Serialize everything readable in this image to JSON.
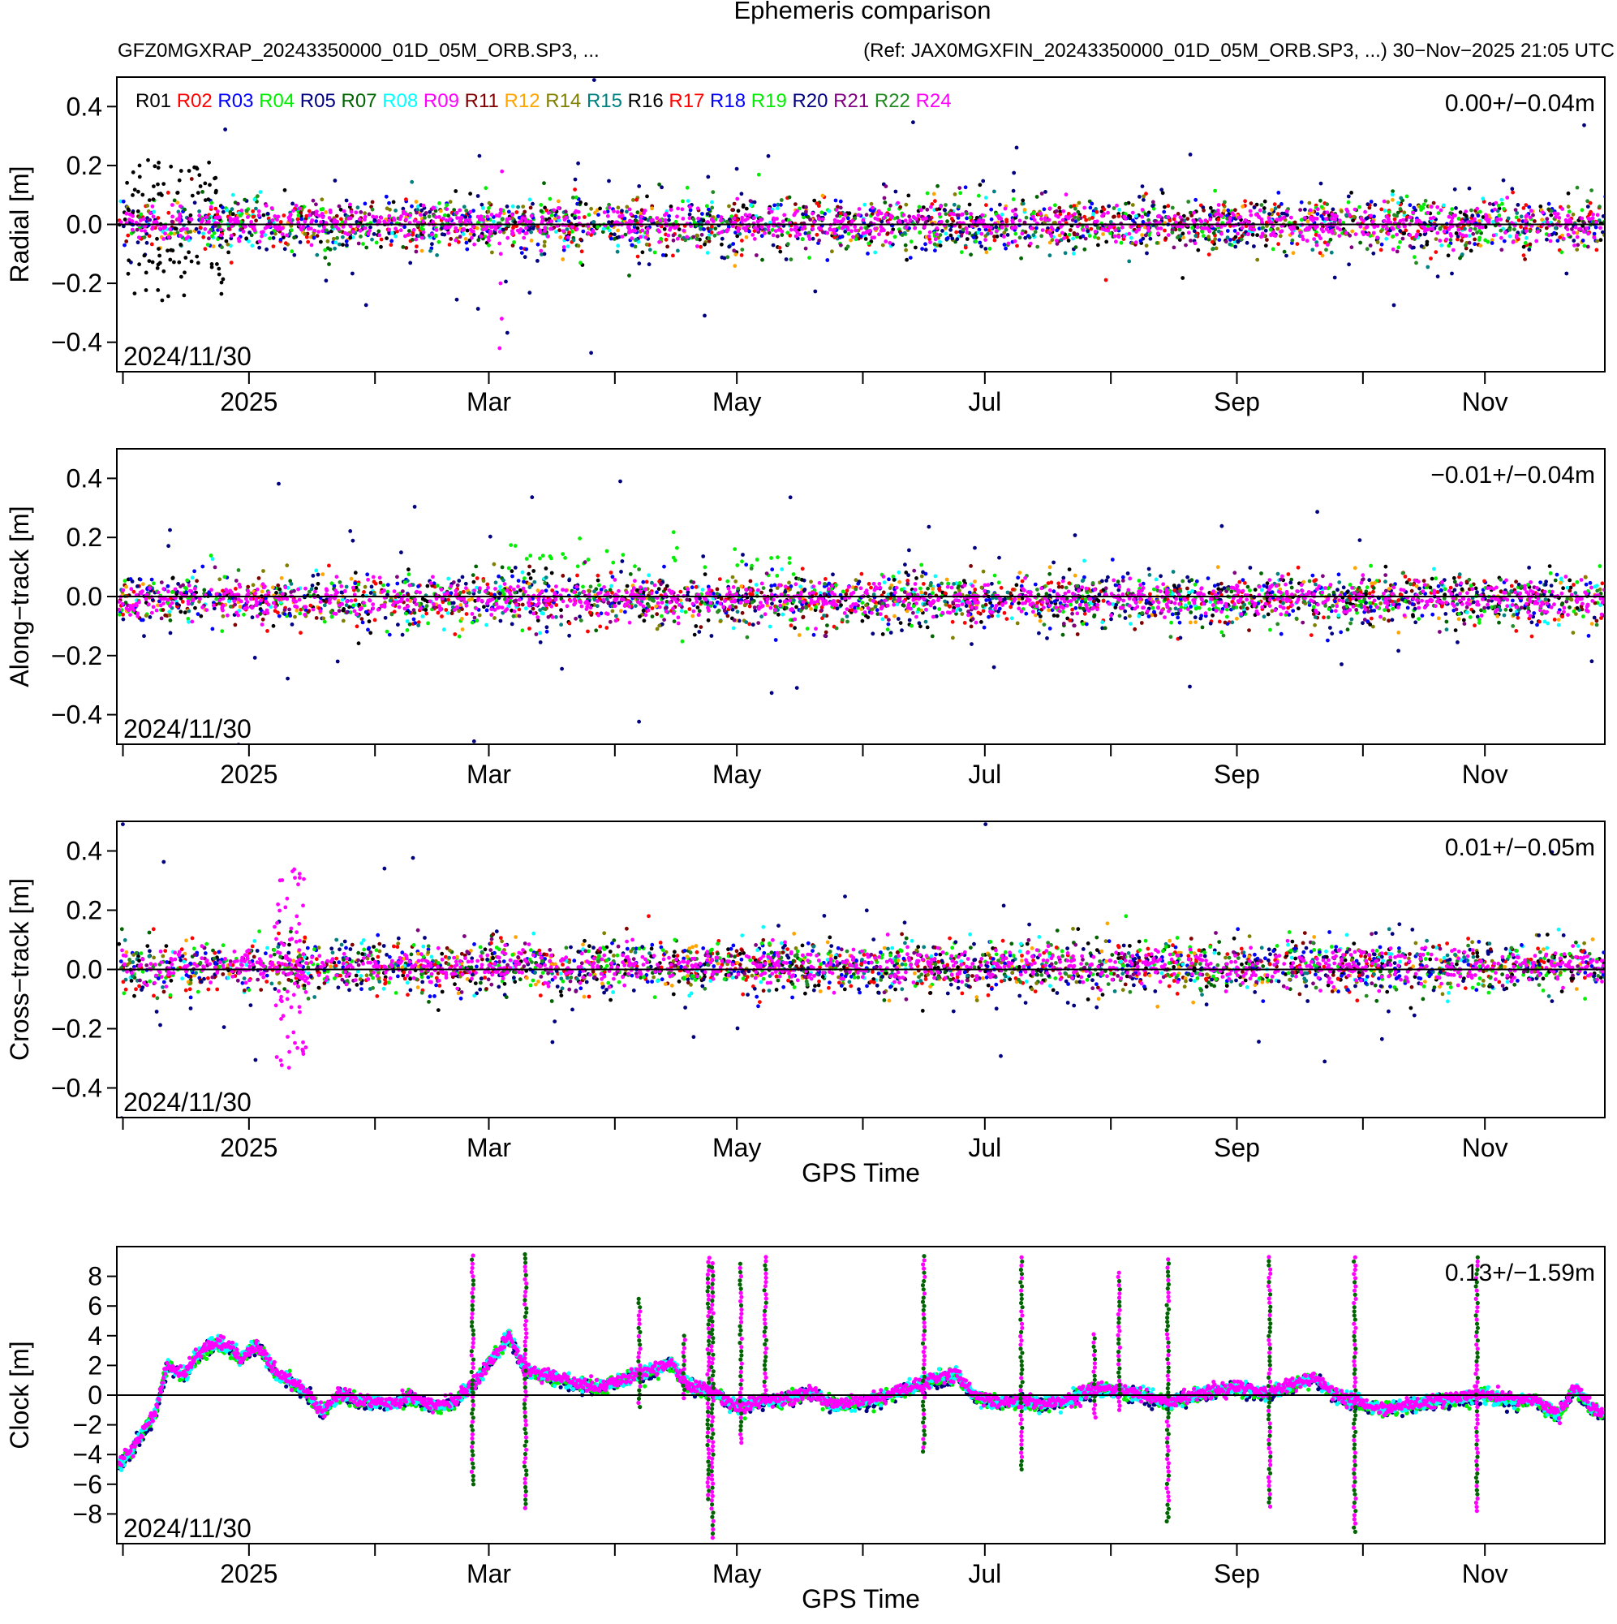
{
  "chart_data": [
    {
      "type": "scatter",
      "panel": "radial",
      "title": "Ephemeris comparison",
      "subtitle_left": "GFZ0MGXRAP_20243350000_01D_05M_ORB.SP3, ...",
      "subtitle_right": "(Ref: JAX0MGXFIN_20243350000_01D_05M_ORB.SP3, ...)  30−Nov−2025 21:05 UTC",
      "ylabel": "Radial [m]",
      "xlabel": "",
      "ylim": [
        -0.5,
        0.5
      ],
      "yticks": [
        -0.4,
        -0.2,
        0.0,
        0.2,
        0.4
      ],
      "ytick_labels": [
        "−0.4",
        "−0.2",
        "0.0",
        "0.2",
        "0.4"
      ],
      "stat": "0.00+/−0.04m",
      "mean": 0.0,
      "std": 0.04,
      "start_label": "2024/11/30",
      "x_month_labels": [
        "2025",
        "Mar",
        "May",
        "Jul",
        "Sep",
        "Nov"
      ],
      "series_legend": [
        "R01",
        "R02",
        "R03",
        "R04",
        "R05",
        "R07",
        "R08",
        "R09",
        "R11",
        "R12",
        "R14",
        "R15",
        "R16",
        "R17",
        "R18",
        "R19",
        "R20",
        "R21",
        "R22",
        "R24"
      ]
    },
    {
      "type": "scatter",
      "panel": "along-track",
      "ylabel": "Along−track [m]",
      "xlabel": "",
      "ylim": [
        -0.5,
        0.5
      ],
      "yticks": [
        -0.4,
        -0.2,
        0.0,
        0.2,
        0.4
      ],
      "ytick_labels": [
        "−0.4",
        "−0.2",
        "0.0",
        "0.2",
        "0.4"
      ],
      "stat": "−0.01+/−0.04m",
      "mean": -0.01,
      "std": 0.04,
      "start_label": "2024/11/30",
      "x_month_labels": [
        "2025",
        "Mar",
        "May",
        "Jul",
        "Sep",
        "Nov"
      ]
    },
    {
      "type": "scatter",
      "panel": "cross-track",
      "ylabel": "Cross−track [m]",
      "xlabel": "GPS Time",
      "ylim": [
        -0.5,
        0.5
      ],
      "yticks": [
        -0.4,
        -0.2,
        0.0,
        0.2,
        0.4
      ],
      "ytick_labels": [
        "−0.4",
        "−0.2",
        "0.0",
        "0.2",
        "0.4"
      ],
      "stat": "0.01+/−0.05m",
      "mean": 0.01,
      "std": 0.05,
      "start_label": "2024/11/30",
      "x_month_labels": [
        "2025",
        "Mar",
        "May",
        "Jul",
        "Sep",
        "Nov"
      ]
    },
    {
      "type": "scatter",
      "panel": "clock",
      "ylabel": "Clock [m]",
      "xlabel": "GPS Time",
      "ylim": [
        -10,
        10
      ],
      "yticks": [
        -8,
        -6,
        -4,
        -2,
        0,
        2,
        4,
        6,
        8
      ],
      "ytick_labels": [
        "−8",
        "−6",
        "−4",
        "−2",
        "0",
        "2",
        "4",
        "6",
        "8"
      ],
      "stat": "0.13+/−1.59m",
      "mean": 0.13,
      "std": 1.59,
      "start_label": "2024/11/30",
      "x_month_labels": [
        "2025",
        "Mar",
        "May",
        "Jul",
        "Sep",
        "Nov"
      ]
    }
  ],
  "x_axis": {
    "unit": "day since 2024-11-30",
    "xlim": [
      -0.5,
      365.5
    ],
    "major_ticks_days": [
      32,
      91,
      152,
      213,
      275,
      336
    ],
    "minor_ticks_days": [
      1,
      63,
      122,
      183,
      244,
      306
    ]
  },
  "series": [
    {
      "name": "R01",
      "color": "#000000"
    },
    {
      "name": "R02",
      "color": "#ff0000"
    },
    {
      "name": "R03",
      "color": "#0000ff"
    },
    {
      "name": "R04",
      "color": "#00ee00"
    },
    {
      "name": "R05",
      "color": "#000080"
    },
    {
      "name": "R07",
      "color": "#006400"
    },
    {
      "name": "R08",
      "color": "#00ffff"
    },
    {
      "name": "R09",
      "color": "#ff00ff"
    },
    {
      "name": "R11",
      "color": "#800000"
    },
    {
      "name": "R12",
      "color": "#ffa500"
    },
    {
      "name": "R14",
      "color": "#808000"
    },
    {
      "name": "R15",
      "color": "#008080"
    },
    {
      "name": "R16",
      "color": "#000000"
    },
    {
      "name": "R17",
      "color": "#ff0000"
    },
    {
      "name": "R18",
      "color": "#0000ff"
    },
    {
      "name": "R19",
      "color": "#00ee00"
    },
    {
      "name": "R20",
      "color": "#000080"
    },
    {
      "name": "R21",
      "color": "#800080"
    },
    {
      "name": "R22",
      "color": "#228b22"
    },
    {
      "name": "R24",
      "color": "#ff00ff"
    }
  ],
  "clock_anchor_curve": [
    [
      0,
      -4.7
    ],
    [
      3,
      -3.8
    ],
    [
      6,
      -2.4
    ],
    [
      9,
      -1.2
    ],
    [
      12,
      2.0
    ],
    [
      16,
      1.3
    ],
    [
      20,
      2.8
    ],
    [
      24,
      3.5
    ],
    [
      28,
      3.0
    ],
    [
      30,
      2.4
    ],
    [
      34,
      3.4
    ],
    [
      38,
      1.6
    ],
    [
      42,
      1.0
    ],
    [
      46,
      0.2
    ],
    [
      50,
      -1.2
    ],
    [
      54,
      0.0
    ],
    [
      60,
      -0.4
    ],
    [
      66,
      -0.6
    ],
    [
      72,
      -0.2
    ],
    [
      78,
      -0.8
    ],
    [
      82,
      -0.5
    ],
    [
      87,
      0.6
    ],
    [
      92,
      2.5
    ],
    [
      96,
      4.0
    ],
    [
      100,
      1.6
    ],
    [
      106,
      1.2
    ],
    [
      112,
      0.8
    ],
    [
      118,
      0.5
    ],
    [
      124,
      1.0
    ],
    [
      130,
      1.5
    ],
    [
      136,
      2.2
    ],
    [
      140,
      0.6
    ],
    [
      146,
      0.2
    ],
    [
      152,
      -0.8
    ],
    [
      158,
      -0.4
    ],
    [
      164,
      -0.3
    ],
    [
      170,
      0.2
    ],
    [
      176,
      -0.7
    ],
    [
      182,
      -0.5
    ],
    [
      188,
      -0.1
    ],
    [
      194,
      0.4
    ],
    [
      200,
      1.0
    ],
    [
      206,
      1.4
    ],
    [
      210,
      0.0
    ],
    [
      216,
      -0.5
    ],
    [
      222,
      -0.4
    ],
    [
      228,
      -0.6
    ],
    [
      234,
      -0.3
    ],
    [
      240,
      0.4
    ],
    [
      246,
      0.3
    ],
    [
      252,
      0.0
    ],
    [
      258,
      -0.5
    ],
    [
      264,
      -0.1
    ],
    [
      270,
      0.3
    ],
    [
      276,
      0.5
    ],
    [
      282,
      0.0
    ],
    [
      288,
      0.6
    ],
    [
      294,
      1.2
    ],
    [
      300,
      -0.2
    ],
    [
      306,
      -0.6
    ],
    [
      312,
      -1.0
    ],
    [
      318,
      -0.7
    ],
    [
      324,
      -0.4
    ],
    [
      330,
      -0.2
    ],
    [
      336,
      0.0
    ],
    [
      342,
      -0.4
    ],
    [
      348,
      -0.3
    ],
    [
      354,
      -1.4
    ],
    [
      358,
      0.5
    ],
    [
      362,
      -0.8
    ],
    [
      365,
      -1.3
    ]
  ],
  "clock_spikes": [
    {
      "day": 87,
      "low": -6.0,
      "high": 9.5
    },
    {
      "day": 100,
      "low": -7.6,
      "high": 9.5
    },
    {
      "day": 128,
      "low": -0.8,
      "high": 6.5
    },
    {
      "day": 139,
      "low": -0.2,
      "high": 4.2
    },
    {
      "day": 145,
      "low": -7.0,
      "high": 9.5
    },
    {
      "day": 146,
      "low": -9.6,
      "high": 9.0
    },
    {
      "day": 153,
      "low": -3.2,
      "high": 9.0
    },
    {
      "day": 159,
      "low": -0.5,
      "high": 9.5
    },
    {
      "day": 198,
      "low": -3.8,
      "high": 9.5
    },
    {
      "day": 222,
      "low": -5.0,
      "high": 9.5
    },
    {
      "day": 240,
      "low": -1.5,
      "high": 4.2
    },
    {
      "day": 246,
      "low": -1.0,
      "high": 8.5
    },
    {
      "day": 258,
      "low": -8.5,
      "high": 9.2
    },
    {
      "day": 283,
      "low": -7.5,
      "high": 9.5
    },
    {
      "day": 304,
      "low": -9.2,
      "high": 9.5
    },
    {
      "day": 334,
      "low": -7.8,
      "high": 9.3
    }
  ]
}
